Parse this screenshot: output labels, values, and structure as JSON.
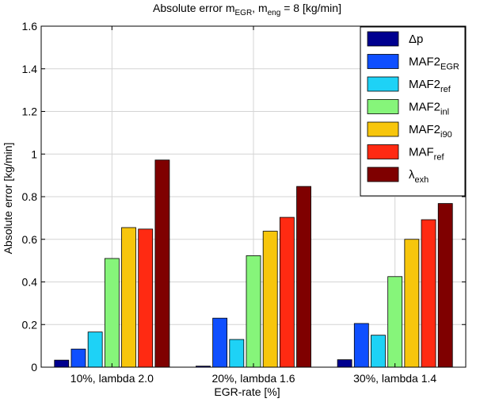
{
  "chart_data": {
    "type": "bar",
    "title": {
      "base": "Absolute error m",
      "sub1": "EGR",
      "mid": ", m",
      "sub2": "eng",
      "tail": " = 8 [kg/min]"
    },
    "xlabel": "EGR-rate [%]",
    "ylabel": "Absolute error [kg/min]",
    "ylim": [
      0,
      1.6
    ],
    "yticks": [
      "0",
      "0.2",
      "0.4",
      "0.6",
      "0.8",
      "1",
      "1.2",
      "1.4",
      "1.6"
    ],
    "grid": true,
    "legend_position": "top-right",
    "categories": [
      "10%, lambda 2.0",
      "20%, lambda 1.6",
      "30%, lambda 1.4"
    ],
    "series": [
      {
        "name": "Δp",
        "label_base": "Δp",
        "label_sub": "",
        "color": "#00008f",
        "values": [
          0.033,
          0.005,
          0.035
        ]
      },
      {
        "name": "MAF2EGR",
        "label_base": "MAF2",
        "label_sub": "EGR",
        "color": "#0f4fff",
        "values": [
          0.085,
          0.23,
          0.205
        ]
      },
      {
        "name": "MAF2ref",
        "label_base": "MAF2",
        "label_sub": "ref",
        "color": "#1ed2f6",
        "values": [
          0.165,
          0.13,
          0.15
        ]
      },
      {
        "name": "MAF2inl",
        "label_base": "MAF2",
        "label_sub": "inl",
        "color": "#86f57a",
        "values": [
          0.51,
          0.523,
          0.425
        ]
      },
      {
        "name": "MAF2i90",
        "label_base": "MAF2",
        "label_sub": "i90",
        "color": "#f7c60c",
        "values": [
          0.655,
          0.638,
          0.6
        ]
      },
      {
        "name": "MAFref",
        "label_base": "MAF",
        "label_sub": "ref",
        "color": "#ff2a12",
        "values": [
          0.648,
          0.703,
          0.692
        ]
      },
      {
        "name": "λexh",
        "label_base": "λ",
        "label_sub": "exh",
        "color": "#7f0000",
        "values": [
          0.972,
          0.848,
          0.768
        ]
      }
    ]
  }
}
